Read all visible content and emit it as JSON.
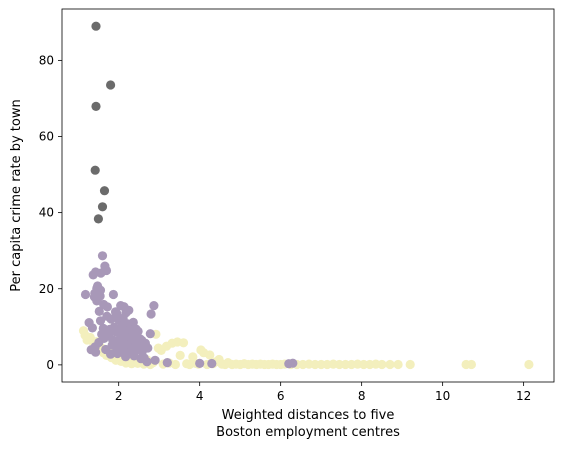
{
  "chart_data": {
    "type": "scatter",
    "title": "",
    "xlabel": [
      "Weighted distances to five",
      "Boston employment centres"
    ],
    "ylabel": "Per capita crime rate by town",
    "xlim": [
      0.6,
      12.75
    ],
    "ylim": [
      -4.5,
      93.5
    ],
    "xticks": [
      2,
      4,
      6,
      8,
      10,
      12
    ],
    "yticks": [
      0,
      20,
      40,
      60,
      80
    ],
    "grid": false,
    "legend": "none",
    "series": [
      {
        "color": "#6b6b6b",
        "points": [
          [
            1.44,
            88.98
          ],
          [
            1.8,
            73.53
          ],
          [
            1.44,
            67.92
          ],
          [
            1.42,
            51.14
          ],
          [
            1.65,
            45.75
          ],
          [
            1.6,
            41.53
          ],
          [
            1.5,
            38.35
          ]
        ]
      },
      {
        "color": "#a898b8",
        "points": [
          [
            1.6,
            28.66
          ],
          [
            1.66,
            25.95
          ],
          [
            1.7,
            24.8
          ],
          [
            1.43,
            24.39
          ],
          [
            1.56,
            24.1
          ],
          [
            1.37,
            23.65
          ],
          [
            1.48,
            20.72
          ],
          [
            1.46,
            20.08
          ],
          [
            1.55,
            19.61
          ],
          [
            1.41,
            18.81
          ],
          [
            1.87,
            18.5
          ],
          [
            1.18,
            18.5
          ],
          [
            1.54,
            18.08
          ],
          [
            1.4,
            17.87
          ],
          [
            1.46,
            16.81
          ],
          [
            1.63,
            15.86
          ],
          [
            2.05,
            15.58
          ],
          [
            2.13,
            15.29
          ],
          [
            2.87,
            15.58
          ],
          [
            1.72,
            15.23
          ],
          [
            2.25,
            14.33
          ],
          [
            1.52,
            14.05
          ],
          [
            1.92,
            13.91
          ],
          [
            2.18,
            13.68
          ],
          [
            2.8,
            13.36
          ],
          [
            1.95,
            13.52
          ],
          [
            1.71,
            12.8
          ],
          [
            2.11,
            12.25
          ],
          [
            1.81,
            12.05
          ],
          [
            2.0,
            11.81
          ],
          [
            1.27,
            11.1
          ],
          [
            2.36,
            11.16
          ],
          [
            1.55,
            11.58
          ],
          [
            2.21,
            10.83
          ],
          [
            2.08,
            10.23
          ],
          [
            1.89,
            9.92
          ],
          [
            1.35,
            9.72
          ],
          [
            1.62,
            9.59
          ],
          [
            2.43,
            9.39
          ],
          [
            2.27,
            9.18
          ],
          [
            1.78,
            9.33
          ],
          [
            2.01,
            8.98
          ],
          [
            2.48,
            8.79
          ],
          [
            1.94,
            8.71
          ],
          [
            2.15,
            8.49
          ],
          [
            2.35,
            8.64
          ],
          [
            1.58,
            8.05
          ],
          [
            2.78,
            8.2
          ],
          [
            1.75,
            7.99
          ],
          [
            2.05,
            7.67
          ],
          [
            2.4,
            7.4
          ],
          [
            2.23,
            7.05
          ],
          [
            1.64,
            6.96
          ],
          [
            2.53,
            6.8
          ],
          [
            1.85,
            6.65
          ],
          [
            2.57,
            6.44
          ],
          [
            2.12,
            6.28
          ],
          [
            1.97,
            6.39
          ],
          [
            2.31,
            5.82
          ],
          [
            1.51,
            5.88
          ],
          [
            2.66,
            5.69
          ],
          [
            2.44,
            5.58
          ],
          [
            2.04,
            5.29
          ],
          [
            1.84,
            5.2
          ],
          [
            2.2,
            5.14
          ],
          [
            2.62,
            5.03
          ],
          [
            1.42,
            4.75
          ],
          [
            2.72,
            4.42
          ],
          [
            1.95,
            4.22
          ],
          [
            2.28,
            4.16
          ],
          [
            1.32,
            3.98
          ],
          [
            2.47,
            4.0
          ],
          [
            1.68,
            4.05
          ],
          [
            2.09,
            3.68
          ],
          [
            2.58,
            3.47
          ],
          [
            1.43,
            3.32
          ],
          [
            2.27,
            3.24
          ],
          [
            1.97,
            3.0
          ],
          [
            1.8,
            2.8
          ],
          [
            2.38,
            2.37
          ],
          [
            2.17,
            2.15
          ],
          [
            2.63,
            1.8
          ],
          [
            2.55,
            1.61
          ],
          [
            2.9,
            1.2
          ],
          [
            2.7,
            0.8
          ],
          [
            3.2,
            0.6
          ],
          [
            4.0,
            0.4
          ],
          [
            4.3,
            0.35
          ],
          [
            6.2,
            0.3
          ],
          [
            6.3,
            0.45
          ]
        ]
      },
      {
        "color": "#f3efbd",
        "points": [
          [
            1.13,
            8.98
          ],
          [
            1.17,
            7.8
          ],
          [
            1.22,
            6.53
          ],
          [
            1.3,
            7.2
          ],
          [
            1.38,
            5.8
          ],
          [
            1.45,
            6.1
          ],
          [
            1.52,
            5.1
          ],
          [
            1.58,
            4.4
          ],
          [
            1.62,
            3.2
          ],
          [
            1.7,
            2.5
          ],
          [
            1.75,
            3.7
          ],
          [
            1.82,
            1.9
          ],
          [
            1.88,
            2.8
          ],
          [
            1.93,
            1.2
          ],
          [
            2.0,
            1.8
          ],
          [
            2.06,
            0.9
          ],
          [
            2.1,
            2.2
          ],
          [
            2.18,
            0.5
          ],
          [
            2.25,
            1.6
          ],
          [
            2.32,
            0.3
          ],
          [
            2.4,
            1.1
          ],
          [
            2.47,
            0.4
          ],
          [
            2.55,
            0.7
          ],
          [
            2.62,
            0.2
          ],
          [
            2.7,
            1.3
          ],
          [
            2.78,
            0.1
          ],
          [
            2.85,
            0.6
          ],
          [
            2.92,
            8.02
          ],
          [
            2.98,
            4.4
          ],
          [
            3.05,
            3.8
          ],
          [
            3.1,
            0.2
          ],
          [
            3.18,
            4.9
          ],
          [
            3.25,
            0.5
          ],
          [
            3.32,
            5.7
          ],
          [
            3.4,
            0.1
          ],
          [
            3.45,
            6.0
          ],
          [
            3.52,
            2.5
          ],
          [
            3.6,
            5.8
          ],
          [
            3.68,
            0.3
          ],
          [
            3.75,
            0.1
          ],
          [
            3.83,
            2.1
          ],
          [
            3.9,
            0.4
          ],
          [
            3.97,
            0.2
          ],
          [
            4.03,
            3.9
          ],
          [
            4.1,
            3.2
          ],
          [
            4.18,
            0.1
          ],
          [
            4.25,
            2.6
          ],
          [
            4.33,
            0.3
          ],
          [
            4.4,
            0.8
          ],
          [
            4.48,
            1.4
          ],
          [
            4.55,
            0.2
          ],
          [
            4.63,
            0.1
          ],
          [
            4.7,
            0.6
          ],
          [
            4.8,
            0.1
          ],
          [
            4.9,
            0.2
          ],
          [
            5.0,
            0.1
          ],
          [
            5.1,
            0.3
          ],
          [
            5.2,
            0.1
          ],
          [
            5.3,
            0.2
          ],
          [
            5.4,
            0.1
          ],
          [
            5.5,
            0.2
          ],
          [
            5.6,
            0.1
          ],
          [
            5.7,
            0.1
          ],
          [
            5.8,
            0.2
          ],
          [
            5.9,
            0.1
          ],
          [
            6.0,
            0.1
          ],
          [
            6.1,
            0.2
          ],
          [
            6.25,
            0.1
          ],
          [
            6.4,
            0.1
          ],
          [
            6.55,
            0.1
          ],
          [
            6.7,
            0.2
          ],
          [
            6.85,
            0.1
          ],
          [
            7.0,
            0.1
          ],
          [
            7.15,
            0.1
          ],
          [
            7.3,
            0.2
          ],
          [
            7.45,
            0.1
          ],
          [
            7.6,
            0.1
          ],
          [
            7.75,
            0.1
          ],
          [
            7.9,
            0.2
          ],
          [
            8.05,
            0.1
          ],
          [
            8.2,
            0.1
          ],
          [
            8.35,
            0.2
          ],
          [
            8.5,
            0.1
          ],
          [
            8.7,
            0.1
          ],
          [
            8.9,
            0.1
          ],
          [
            9.2,
            0.1
          ],
          [
            10.58,
            0.1
          ],
          [
            10.71,
            0.1
          ],
          [
            12.13,
            0.1
          ]
        ]
      }
    ]
  }
}
